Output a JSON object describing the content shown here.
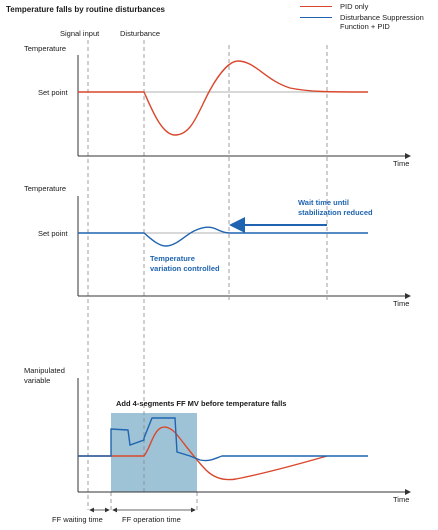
{
  "title": "Temperature falls by routine disturbances",
  "legend": [
    {
      "label": "PID only",
      "color": "#d9472b"
    },
    {
      "label": "Disturbance Suppression Function + PID",
      "color": "#1f64b0"
    }
  ],
  "markers": {
    "signal_input": "Signal input",
    "disturbance": "Disturbance"
  },
  "panel1": {
    "ylabel": "Temperature",
    "setpoint": "Set point",
    "xlabel": "Time"
  },
  "panel2": {
    "ylabel": "Temperature",
    "setpoint": "Set point",
    "xlabel": "Time",
    "wait_note_line1": "Wait time until",
    "wait_note_line2": "stabilization reduced",
    "variation_line1": "Temperature",
    "variation_line2": "variation controlled"
  },
  "panel3": {
    "ylabel_line1": "Manipulated",
    "ylabel_line2": "variable",
    "xlabel": "Time",
    "ff_note": "Add 4-segments FF MV before temperature falls"
  },
  "bottom": {
    "ff_waiting": "FF waiting time",
    "ff_operation": "FF operation time"
  },
  "colors": {
    "pid": "#d9472b",
    "dsf": "#1f64b0",
    "ff_box": "#9fc3d6",
    "axis": "#333333",
    "guide": "#888888"
  }
}
